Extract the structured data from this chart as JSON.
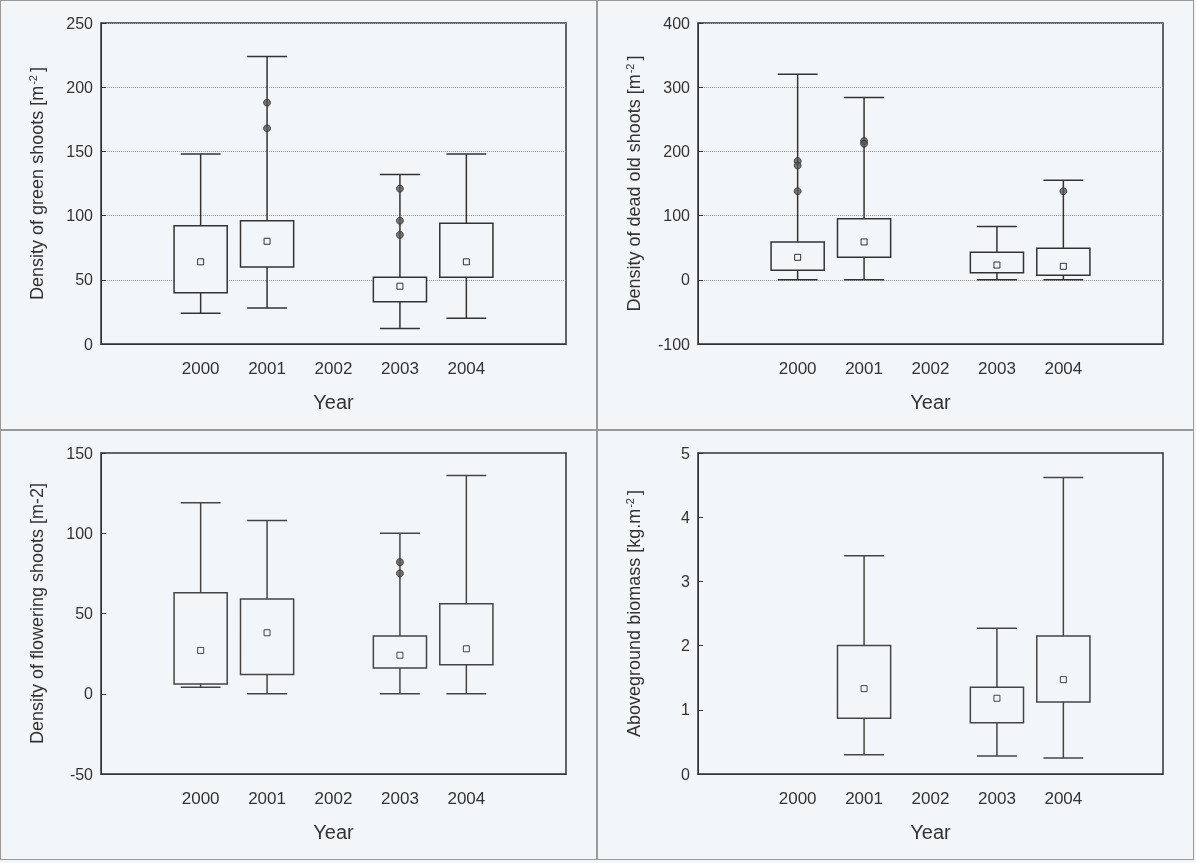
{
  "chart_data": [
    {
      "type": "box",
      "xlabel": "Year",
      "ylabel": "Density of green shoots [m$^{-2}$]",
      "categories": [
        null,
        "2000",
        "2001",
        "2002",
        "2003",
        "2004",
        null
      ],
      "ylim": [
        0,
        250
      ],
      "yticks": [
        0,
        50,
        100,
        150,
        200,
        250
      ],
      "grid": "y",
      "color": "#333333",
      "boxes": [
        null,
        {
          "low": 24,
          "q1": 40,
          "median": 64,
          "q3": 92,
          "high": 148
        },
        {
          "low": 28,
          "q1": 60,
          "median": 80,
          "q3": 96,
          "high": 224,
          "outliers": [
            188,
            168
          ]
        },
        null,
        {
          "low": 12,
          "q1": 33,
          "median": 45,
          "q3": 52,
          "high": 132,
          "outliers": [
            121,
            96,
            85
          ]
        },
        {
          "low": 20,
          "q1": 52,
          "median": 64,
          "q3": 94,
          "high": 148
        },
        null
      ]
    },
    {
      "type": "box",
      "xlabel": "Year",
      "ylabel": "Density of dead old shoots [m$^{-2}$]",
      "categories": [
        null,
        "2000",
        "2001",
        "2002",
        "2003",
        "2004",
        null
      ],
      "ylim": [
        -100,
        400
      ],
      "yticks": [
        -100,
        0,
        100,
        200,
        300,
        400
      ],
      "grid": "y",
      "color": "#333333",
      "boxes": [
        null,
        {
          "low": 0,
          "q1": 15,
          "median": 35,
          "q3": 59,
          "high": 320,
          "outliers": [
            185,
            178,
            138
          ]
        },
        {
          "low": 0,
          "q1": 35,
          "median": 59,
          "q3": 95,
          "high": 284,
          "outliers": [
            216,
            212
          ]
        },
        null,
        {
          "low": 0,
          "q1": 11,
          "median": 23,
          "q3": 43,
          "high": 83
        },
        {
          "low": 0,
          "q1": 7,
          "median": 21,
          "q3": 49,
          "high": 155,
          "outliers": [
            138
          ]
        },
        null
      ]
    },
    {
      "type": "box",
      "xlabel": "Year",
      "ylabel": "Density of flowering shoots [m-2]",
      "categories": [
        null,
        "2000",
        "2001",
        "2002",
        "2003",
        "2004",
        null
      ],
      "ylim": [
        -50,
        150
      ],
      "yticks": [
        -50,
        0,
        50,
        100,
        150
      ],
      "color": "#444444",
      "boxes": [
        null,
        {
          "low": 4,
          "q1": 6,
          "median": 27,
          "q3": 63,
          "high": 119
        },
        {
          "low": 0,
          "q1": 12,
          "median": 38,
          "q3": 59,
          "high": 108
        },
        null,
        {
          "low": 0,
          "q1": 16,
          "median": 24,
          "q3": 36,
          "high": 100,
          "outliers": [
            82,
            75
          ]
        },
        {
          "low": 0,
          "q1": 18,
          "median": 28,
          "q3": 56,
          "high": 136
        },
        null
      ]
    },
    {
      "type": "box",
      "xlabel": "Year",
      "ylabel": "Aboveground biomass [kg.m$^{-2}$]",
      "categories": [
        null,
        "2000",
        "2001",
        "2002",
        "2003",
        "2004",
        null
      ],
      "ylim": [
        0,
        5
      ],
      "yticks": [
        0,
        1,
        2,
        3,
        4,
        5
      ],
      "color": "#444444",
      "boxes": [
        null,
        null,
        {
          "low": 0.3,
          "q1": 0.87,
          "median": 1.33,
          "q3": 2.0,
          "high": 3.4
        },
        null,
        {
          "low": 0.28,
          "q1": 0.8,
          "median": 1.18,
          "q3": 1.35,
          "high": 2.27
        },
        {
          "low": 0.25,
          "q1": 1.12,
          "median": 1.47,
          "q3": 2.15,
          "high": 4.62
        },
        null
      ]
    }
  ]
}
